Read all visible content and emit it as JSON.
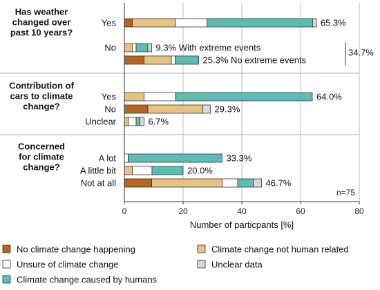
{
  "colors": {
    "no_cc": "#b5651d",
    "not_human": "#e6c384",
    "unsure": "#ffffff",
    "unclear": "#d9d9d9",
    "human": "#5cbdb3",
    "stroke": "#333333"
  },
  "chart_data": {
    "type": "bar",
    "orientation": "horizontal",
    "stacked": true,
    "xlabel": "Number of particpants [%]",
    "xlim": [
      0,
      80
    ],
    "xticks": [
      0,
      20,
      40,
      60,
      80
    ],
    "legend_position": "bottom",
    "note": "n=75",
    "series_order": [
      "no_cc",
      "not_human",
      "unsure",
      "human",
      "unclear"
    ],
    "legend": [
      {
        "key": "no_cc",
        "label": "No climate change happening"
      },
      {
        "key": "not_human",
        "label": "Climate change not human related"
      },
      {
        "key": "unsure",
        "label": "Unsure of climate change"
      },
      {
        "key": "unclear",
        "label": "Unclear data"
      },
      {
        "key": "human",
        "label": "Climate change caused by humans"
      }
    ],
    "groups": [
      {
        "question": [
          "Has weather",
          "changed over",
          "past 10 years?"
        ],
        "bars": [
          {
            "category": "Yes",
            "segments": {
              "no_cc": 2.7,
              "not_human": 14.7,
              "unsure": 10.7,
              "human": 36.0,
              "unclear": 1.3
            },
            "total_label": "65.3%"
          },
          {
            "category": "No",
            "segments": {
              "no_cc": 0,
              "not_human": 2.7,
              "unsure": 1.3,
              "human": 4.0,
              "unclear": 1.3
            },
            "total_label": "9.3% With extreme events"
          },
          {
            "category": "",
            "segments": {
              "no_cc": 6.7,
              "not_human": 9.3,
              "unsure": 1.3,
              "human": 8.0,
              "unclear": 0
            },
            "total_label": "25.3% No extreme events"
          }
        ],
        "bracket_label": "34.7%"
      },
      {
        "question": [
          "Contribution of",
          "cars to climate",
          "change?"
        ],
        "bars": [
          {
            "category": "Yes",
            "segments": {
              "no_cc": 0,
              "not_human": 6.7,
              "unsure": 10.7,
              "human": 46.6,
              "unclear": 0
            },
            "total_label": "64.0%"
          },
          {
            "category": "No",
            "segments": {
              "no_cc": 8.0,
              "not_human": 18.7,
              "unsure": 0,
              "human": 0,
              "unclear": 2.6
            },
            "total_label": "29.3%"
          },
          {
            "category": "Unclear",
            "segments": {
              "no_cc": 0,
              "not_human": 1.3,
              "unsure": 2.7,
              "human": 1.3,
              "unclear": 1.4
            },
            "total_label": "6.7%"
          }
        ]
      },
      {
        "question": [
          "Concerned",
          "for climate",
          "change?"
        ],
        "bars": [
          {
            "category": "A lot",
            "segments": {
              "no_cc": 0,
              "not_human": 0,
              "unsure": 1.3,
              "human": 32.0,
              "unclear": 0
            },
            "total_label": "33.3%"
          },
          {
            "category": "A little bit",
            "segments": {
              "no_cc": 0,
              "not_human": 2.7,
              "unsure": 6.7,
              "human": 10.6,
              "unclear": 0
            },
            "total_label": "20.0%"
          },
          {
            "category": "Not at all",
            "segments": {
              "no_cc": 9.3,
              "not_human": 24.0,
              "unsure": 5.3,
              "human": 5.3,
              "unclear": 2.8
            },
            "total_label": "46.7%"
          }
        ]
      }
    ]
  }
}
